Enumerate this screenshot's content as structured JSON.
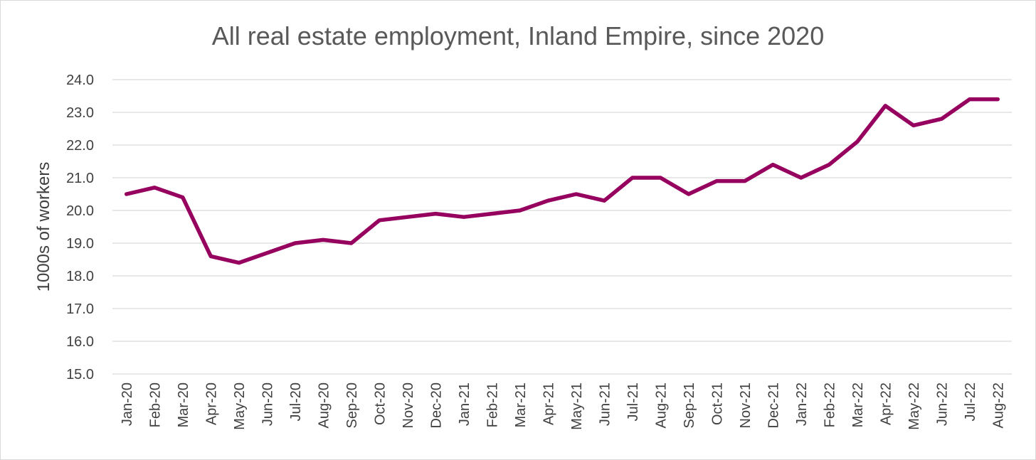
{
  "chart_data": {
    "type": "line",
    "title": "All real estate employment, Inland Empire, since 2020",
    "xlabel": "",
    "ylabel": "1000s of workers",
    "ylim": [
      15.0,
      24.0
    ],
    "yticks": [
      "15.0",
      "16.0",
      "17.0",
      "18.0",
      "19.0",
      "20.0",
      "21.0",
      "22.0",
      "23.0",
      "24.0"
    ],
    "grid": true,
    "legend": "none",
    "line_color": "#96005e",
    "categories": [
      "Jan-20",
      "Feb-20",
      "Mar-20",
      "Apr-20",
      "May-20",
      "Jun-20",
      "Jul-20",
      "Aug-20",
      "Sep-20",
      "Oct-20",
      "Nov-20",
      "Dec-20",
      "Jan-21",
      "Feb-21",
      "Mar-21",
      "Apr-21",
      "May-21",
      "Jun-21",
      "Jul-21",
      "Aug-21",
      "Sep-21",
      "Oct-21",
      "Nov-21",
      "Dec-21",
      "Jan-22",
      "Feb-22",
      "Mar-22",
      "Apr-22",
      "May-22",
      "Jun-22",
      "Jul-22",
      "Aug-22"
    ],
    "series": [
      {
        "values": [
          20.5,
          20.7,
          20.4,
          18.6,
          18.4,
          18.7,
          19.0,
          19.1,
          19.0,
          19.7,
          19.8,
          19.9,
          19.8,
          19.9,
          20.0,
          20.3,
          20.5,
          20.3,
          21.0,
          21.0,
          20.5,
          20.9,
          20.9,
          21.4,
          21.0,
          21.4,
          22.1,
          23.2,
          22.6,
          22.8,
          23.4,
          23.4
        ]
      }
    ]
  }
}
